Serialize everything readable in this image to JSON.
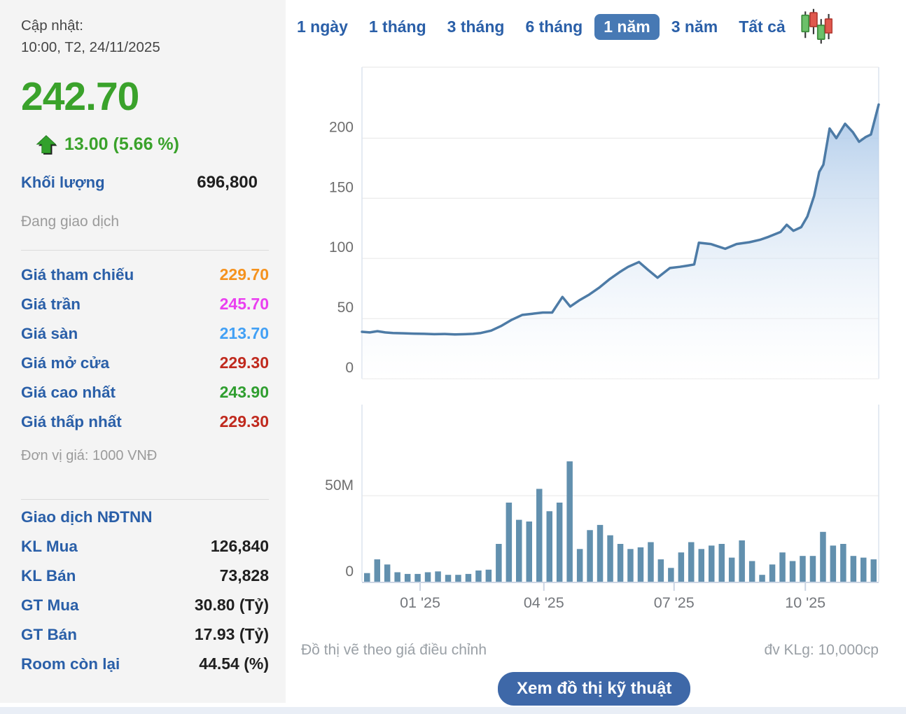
{
  "sidebar": {
    "update_label": "Cập nhật:",
    "update_time": "10:00, T2, 24/11/2025",
    "price": "242.70",
    "change": "13.00 (5.66 %)",
    "volume_label": "Khối lượng",
    "volume_value": "696,800",
    "session_status": "Đang giao dịch",
    "price_rows": [
      {
        "label": "Giá tham chiếu",
        "value": "229.70",
        "color": "#f5921e"
      },
      {
        "label": "Giá trần",
        "value": "245.70",
        "color": "#ea3ff0"
      },
      {
        "label": "Giá sàn",
        "value": "213.70",
        "color": "#42a0f5"
      },
      {
        "label": "Giá mở cửa",
        "value": "229.30",
        "color": "#c02a1e"
      },
      {
        "label": "Giá cao nhất",
        "value": "243.90",
        "color": "#2f9e2f"
      },
      {
        "label": "Giá thấp nhất",
        "value": "229.30",
        "color": "#c02a1e"
      }
    ],
    "price_unit_note": "Đơn vị giá: 1000 VNĐ",
    "foreign_section_title": "Giao dịch NĐTNN",
    "foreign_rows": [
      {
        "label": "KL Mua",
        "value": "126,840"
      },
      {
        "label": "KL Bán",
        "value": "73,828"
      },
      {
        "label": "GT Mua",
        "value": "30.80 (Tỷ)"
      },
      {
        "label": "GT Bán",
        "value": "17.93 (Tỷ)"
      },
      {
        "label": "Room còn lại",
        "value": "44.54 (%)"
      }
    ],
    "accent_green": "#3aa22b",
    "accent_blue": "#2a5fa8"
  },
  "tabs": {
    "items": [
      "1 ngày",
      "1 tháng",
      "3 tháng",
      "6 tháng",
      "1 năm",
      "3 năm",
      "Tất cả"
    ],
    "selected": "1 năm",
    "selected_bg": "#4779b4"
  },
  "chart_data": [
    {
      "type": "area",
      "title": "Adjusted price, 1-year range",
      "ylabel": "",
      "ylim": [
        0,
        259
      ],
      "yticks": [
        0,
        50,
        100,
        150,
        200
      ],
      "xticks": [
        {
          "label": "01 '25",
          "pos": 0.1125
        },
        {
          "label": "04 '25",
          "pos": 0.352
        },
        {
          "label": "07 '25",
          "pos": 0.604
        },
        {
          "label": "10 '25",
          "pos": 0.858
        }
      ],
      "points": [
        [
          0,
          39
        ],
        [
          0.015,
          38.5
        ],
        [
          0.03,
          39.5
        ],
        [
          0.045,
          38.5
        ],
        [
          0.06,
          38
        ],
        [
          0.08,
          37.8
        ],
        [
          0.1,
          37.5
        ],
        [
          0.12,
          37.3
        ],
        [
          0.14,
          37
        ],
        [
          0.16,
          37.2
        ],
        [
          0.18,
          36.8
        ],
        [
          0.2,
          37
        ],
        [
          0.215,
          37.3
        ],
        [
          0.23,
          38
        ],
        [
          0.25,
          40
        ],
        [
          0.27,
          44
        ],
        [
          0.29,
          49
        ],
        [
          0.31,
          53
        ],
        [
          0.33,
          54
        ],
        [
          0.35,
          55
        ],
        [
          0.368,
          55
        ],
        [
          0.388,
          68
        ],
        [
          0.403,
          60
        ],
        [
          0.42,
          65
        ],
        [
          0.44,
          70
        ],
        [
          0.46,
          76
        ],
        [
          0.48,
          83
        ],
        [
          0.5,
          89
        ],
        [
          0.515,
          93
        ],
        [
          0.536,
          97
        ],
        [
          0.555,
          90
        ],
        [
          0.572,
          84
        ],
        [
          0.596,
          92
        ],
        [
          0.615,
          93
        ],
        [
          0.63,
          94
        ],
        [
          0.643,
          95
        ],
        [
          0.652,
          113
        ],
        [
          0.675,
          112
        ],
        [
          0.703,
          108
        ],
        [
          0.725,
          112
        ],
        [
          0.75,
          113.5
        ],
        [
          0.77,
          115.5
        ],
        [
          0.787,
          118
        ],
        [
          0.81,
          122
        ],
        [
          0.822,
          128
        ],
        [
          0.835,
          123
        ],
        [
          0.85,
          126
        ],
        [
          0.862,
          135
        ],
        [
          0.875,
          152
        ],
        [
          0.885,
          172
        ],
        [
          0.893,
          178
        ],
        [
          0.905,
          208
        ],
        [
          0.918,
          200
        ],
        [
          0.935,
          212
        ],
        [
          0.95,
          205
        ],
        [
          0.962,
          197
        ],
        [
          0.975,
          201
        ],
        [
          0.985,
          203
        ],
        [
          1,
          228
        ]
      ],
      "line_color": "#4d7ba6",
      "area_top_color": "#97bbe3",
      "grid_color": "#e6e6e6",
      "border_color": "#dce3ee"
    },
    {
      "type": "bar",
      "title": "Weekly traded volume",
      "ylim": [
        0,
        103
      ],
      "yticks": [
        {
          "v": 0,
          "label": "0"
        },
        {
          "v": 50,
          "label": "50M"
        }
      ],
      "values": [
        5,
        13,
        10,
        5.5,
        4.5,
        4.5,
        5.5,
        6,
        4,
        4,
        4.5,
        6.5,
        7,
        22,
        46,
        36,
        35,
        54,
        41,
        46,
        70,
        19,
        30,
        33,
        27,
        22,
        19,
        20,
        23,
        13,
        8,
        17,
        23,
        19,
        21,
        22,
        14,
        24,
        12,
        4,
        10,
        17,
        12,
        15,
        15,
        29,
        21,
        22,
        15,
        14,
        13
      ],
      "bar_color": "#6290ae",
      "axis_color": "#ccd5e3"
    }
  ],
  "footer": {
    "left_note": "Đồ thị vẽ theo giá điều chỉnh",
    "right_note": "đv KLg: 10,000cp",
    "button_label": "Xem đồ thị kỹ thuật"
  }
}
